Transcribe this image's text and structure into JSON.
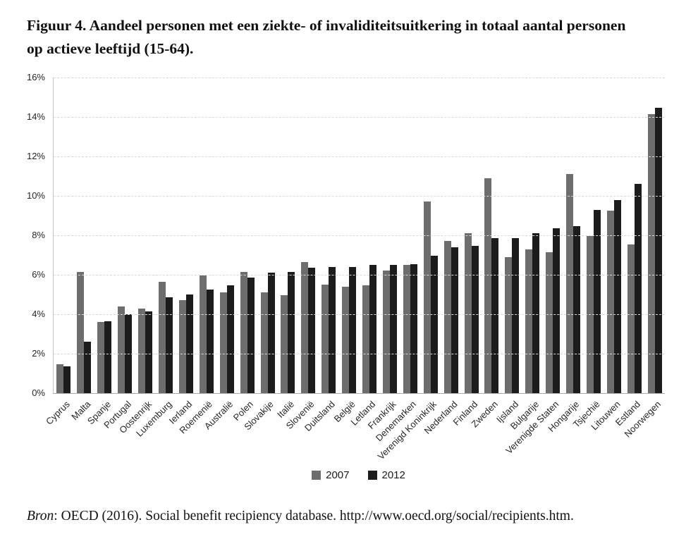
{
  "title": {
    "line1": "Figuur 4. Aandeel personen met een ziekte- of invaliditeitsuitkering in totaal aantal personen",
    "line2": "op actieve leeftijd (15-64)."
  },
  "source": {
    "label_italic": "Bron",
    "rest": ": OECD (2016). Social benefit recipiency database. http://www.oecd.org/social/recipients.htm."
  },
  "colors": {
    "series_2007": "#6d6d6d",
    "series_2012": "#1c1c1c",
    "gridline": "#d9d9d9",
    "axis_line": "#b0b0b0",
    "tick_text": "#262626"
  },
  "chart_data": {
    "type": "bar",
    "title": "Figuur 4. Aandeel personen met een ziekte- of invaliditeitsuitkering in totaal aantal personen op actieve leeftijd (15-64).",
    "xlabel": "",
    "ylabel": "",
    "ylim": [
      0,
      16
    ],
    "ytick_step": 2,
    "ytick_suffix": "%",
    "grid": "horizontal-dashed",
    "legend_position": "bottom-center",
    "categories": [
      "Cyprus",
      "Malta",
      "Spanje",
      "Portugal",
      "Oostenrijk",
      "Luxemburg",
      "Ierland",
      "Roemenië",
      "Australië",
      "Polen",
      "Slovakije",
      "Italië",
      "Slovenië",
      "Duitsland",
      "België",
      "Letland",
      "Frankrijk",
      "Denemarken",
      "Verenigd Koninkrijk",
      "Nederland",
      "Finland",
      "Zweden",
      "Ijsland",
      "Bulgarije",
      "Verenigde Staten",
      "Hongarije",
      "Tsjechië",
      "Litouwen",
      "Estland",
      "Noorwegen"
    ],
    "series": [
      {
        "name": "2007",
        "color": "#6d6d6d",
        "values": [
          1.45,
          6.15,
          3.6,
          4.4,
          4.3,
          5.65,
          4.7,
          5.95,
          5.1,
          6.15,
          5.1,
          4.95,
          6.65,
          5.5,
          5.4,
          5.45,
          6.2,
          6.5,
          9.7,
          7.7,
          8.1,
          10.9,
          6.9,
          7.3,
          7.15,
          11.1,
          7.95,
          9.25,
          7.55,
          14.15
        ]
      },
      {
        "name": "2012",
        "color": "#1c1c1c",
        "values": [
          1.35,
          2.6,
          3.65,
          4.0,
          4.15,
          4.85,
          5.0,
          5.25,
          5.45,
          5.85,
          6.1,
          6.15,
          6.35,
          6.4,
          6.4,
          6.5,
          6.5,
          6.55,
          6.95,
          7.4,
          7.45,
          7.85,
          7.85,
          8.1,
          8.35,
          8.45,
          9.3,
          9.8,
          10.6,
          14.45
        ]
      }
    ]
  }
}
